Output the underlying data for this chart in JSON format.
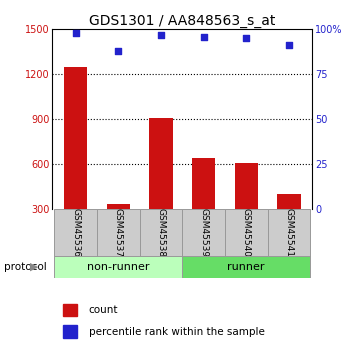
{
  "title": "GDS1301 / AA848563_s_at",
  "samples": [
    "GSM45536",
    "GSM45537",
    "GSM45538",
    "GSM45539",
    "GSM45540",
    "GSM45541"
  ],
  "counts": [
    1250,
    330,
    910,
    640,
    605,
    400
  ],
  "percentile_ranks": [
    98,
    88,
    97,
    96,
    95,
    91
  ],
  "bar_color": "#cc1111",
  "dot_color": "#2222cc",
  "ylim_left": [
    300,
    1500
  ],
  "ylim_right": [
    0,
    100
  ],
  "yticks_left": [
    300,
    600,
    900,
    1200,
    1500
  ],
  "yticks_right": [
    0,
    25,
    50,
    75,
    100
  ],
  "left_tick_color": "#cc1111",
  "right_tick_color": "#2222cc",
  "title_fontsize": 10,
  "tick_label_fontsize": 7,
  "legend_fontsize": 7.5,
  "sample_label_fontsize": 6.5,
  "group_label_fontsize": 8,
  "protocol_label": "protocol",
  "non_runner_color": "#bbffbb",
  "runner_color": "#66dd66",
  "sample_box_color": "#cccccc",
  "background_color": "#ffffff"
}
